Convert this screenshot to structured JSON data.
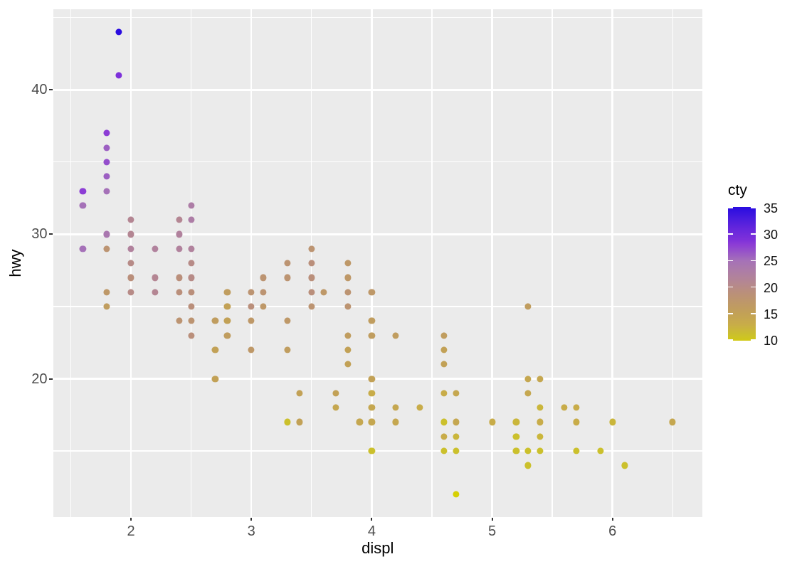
{
  "chart_data": {
    "type": "scatter",
    "title": "",
    "xlabel": "displ",
    "ylabel": "hwy",
    "xlim": [
      1.352,
      6.747
    ],
    "ylim": [
      10.45,
      45.58
    ],
    "x_ticks": [
      2,
      3,
      4,
      5,
      6
    ],
    "x_minor_ticks": [
      1.5,
      2.5,
      3.5,
      4.5,
      5.5,
      6.5
    ],
    "y_ticks": [
      20,
      30,
      40
    ],
    "y_minor_ticks": [
      15,
      25,
      35,
      45
    ],
    "grid": true,
    "panel_background": "#EBEBEB",
    "grid_color": "#FFFFFF",
    "axis_text_color": "#4D4D4D",
    "tick_mark_color": "#333333",
    "points_format": "[displ, hwy, cty]",
    "points": [
      [
        1.9,
        44,
        35
      ],
      [
        1.9,
        41,
        29
      ],
      [
        1.8,
        37,
        28
      ],
      [
        1.8,
        36,
        26
      ],
      [
        1.8,
        35,
        27
      ],
      [
        1.8,
        34,
        26
      ],
      [
        1.6,
        33,
        28
      ],
      [
        1.8,
        33,
        25
      ],
      [
        1.6,
        32,
        25
      ],
      [
        2.5,
        32,
        23
      ],
      [
        2.0,
        31,
        21
      ],
      [
        2.4,
        31,
        21
      ],
      [
        2.5,
        31,
        23
      ],
      [
        1.8,
        30,
        24
      ],
      [
        2.0,
        30,
        21
      ],
      [
        2.4,
        30,
        22
      ],
      [
        1.6,
        29,
        25
      ],
      [
        1.8,
        29,
        18
      ],
      [
        2.0,
        29,
        22
      ],
      [
        2.2,
        29,
        22
      ],
      [
        2.4,
        29,
        22
      ],
      [
        2.5,
        29,
        22
      ],
      [
        3.5,
        29,
        18
      ],
      [
        2.0,
        28,
        20
      ],
      [
        2.5,
        28,
        20
      ],
      [
        3.3,
        28,
        18
      ],
      [
        3.5,
        28,
        19
      ],
      [
        3.8,
        28,
        17
      ],
      [
        2.0,
        27,
        19
      ],
      [
        2.2,
        27,
        21
      ],
      [
        2.4,
        27,
        19
      ],
      [
        2.5,
        27,
        20
      ],
      [
        3.1,
        27,
        18
      ],
      [
        3.3,
        27,
        18
      ],
      [
        3.5,
        27,
        19
      ],
      [
        3.8,
        27,
        17
      ],
      [
        1.8,
        26,
        17
      ],
      [
        2.0,
        26,
        20
      ],
      [
        2.2,
        26,
        21
      ],
      [
        2.4,
        26,
        19
      ],
      [
        2.5,
        26,
        19
      ],
      [
        2.8,
        26,
        16
      ],
      [
        3.0,
        26,
        18
      ],
      [
        3.1,
        26,
        18
      ],
      [
        3.5,
        26,
        19
      ],
      [
        3.6,
        26,
        17
      ],
      [
        3.8,
        26,
        18
      ],
      [
        4.0,
        26,
        17
      ],
      [
        1.8,
        25,
        16
      ],
      [
        2.5,
        25,
        19
      ],
      [
        2.8,
        25,
        15
      ],
      [
        3.0,
        25,
        19
      ],
      [
        3.1,
        25,
        17
      ],
      [
        3.5,
        25,
        18
      ],
      [
        3.8,
        25,
        18
      ],
      [
        5.3,
        25,
        16
      ],
      [
        2.4,
        24,
        18
      ],
      [
        2.5,
        24,
        18
      ],
      [
        2.7,
        24,
        16
      ],
      [
        2.8,
        24,
        15
      ],
      [
        3.0,
        24,
        17
      ],
      [
        3.3,
        24,
        17
      ],
      [
        4.0,
        24,
        16
      ],
      [
        2.5,
        23,
        19
      ],
      [
        2.8,
        23,
        16
      ],
      [
        3.8,
        23,
        16
      ],
      [
        4.0,
        23,
        16
      ],
      [
        4.2,
        23,
        16
      ],
      [
        4.6,
        23,
        16
      ],
      [
        2.7,
        22,
        15
      ],
      [
        3.0,
        22,
        17
      ],
      [
        3.3,
        22,
        16
      ],
      [
        3.8,
        22,
        15
      ],
      [
        4.6,
        22,
        15
      ],
      [
        3.8,
        21,
        15
      ],
      [
        4.6,
        21,
        15
      ],
      [
        2.7,
        20,
        15
      ],
      [
        4.0,
        20,
        15
      ],
      [
        5.3,
        20,
        14
      ],
      [
        5.4,
        20,
        14
      ],
      [
        3.4,
        19,
        15
      ],
      [
        3.7,
        19,
        15
      ],
      [
        4.0,
        19,
        13
      ],
      [
        4.6,
        19,
        13
      ],
      [
        4.7,
        19,
        14
      ],
      [
        5.3,
        19,
        14
      ],
      [
        3.7,
        18,
        14
      ],
      [
        4.0,
        18,
        14
      ],
      [
        4.2,
        18,
        14
      ],
      [
        4.4,
        18,
        13
      ],
      [
        5.4,
        18,
        12
      ],
      [
        5.6,
        18,
        13
      ],
      [
        5.7,
        18,
        13
      ],
      [
        3.3,
        17,
        11
      ],
      [
        3.4,
        17,
        15
      ],
      [
        3.9,
        17,
        14
      ],
      [
        4.0,
        17,
        14
      ],
      [
        4.2,
        17,
        14
      ],
      [
        4.6,
        17,
        11
      ],
      [
        4.7,
        17,
        14
      ],
      [
        5.0,
        17,
        13
      ],
      [
        5.2,
        17,
        12
      ],
      [
        5.4,
        17,
        13
      ],
      [
        5.7,
        17,
        13
      ],
      [
        6.0,
        17,
        12
      ],
      [
        6.5,
        17,
        14
      ],
      [
        4.6,
        16,
        13
      ],
      [
        4.7,
        16,
        12
      ],
      [
        5.2,
        16,
        11
      ],
      [
        5.4,
        16,
        12
      ],
      [
        4.0,
        15,
        11
      ],
      [
        4.6,
        15,
        11
      ],
      [
        4.7,
        15,
        11
      ],
      [
        5.2,
        15,
        11
      ],
      [
        5.3,
        15,
        11
      ],
      [
        5.4,
        15,
        11
      ],
      [
        5.7,
        15,
        11
      ],
      [
        5.9,
        15,
        11
      ],
      [
        5.3,
        14,
        11
      ],
      [
        6.1,
        14,
        11
      ],
      [
        4.7,
        12,
        9
      ]
    ],
    "legend": {
      "title": "cty",
      "position": "right",
      "ticks": [
        10,
        15,
        20,
        25,
        30,
        35
      ],
      "domain": [
        9.9,
        35.1
      ],
      "gradient_stops": [
        [
          9,
          "#D6D004"
        ],
        [
          11,
          "#CBC02C"
        ],
        [
          13,
          "#C8AC49"
        ],
        [
          15,
          "#C2A156"
        ],
        [
          17,
          "#BE9868"
        ],
        [
          19,
          "#BA8F7B"
        ],
        [
          21,
          "#B48693"
        ],
        [
          23,
          "#AD7DA6"
        ],
        [
          25,
          "#A571B8"
        ],
        [
          26,
          "#9C5FC2"
        ],
        [
          28,
          "#8C3DD5"
        ],
        [
          29,
          "#7D30DA"
        ],
        [
          31,
          "#6526DC"
        ],
        [
          33,
          "#471BDE"
        ],
        [
          35,
          "#2A0CE0"
        ]
      ]
    }
  }
}
